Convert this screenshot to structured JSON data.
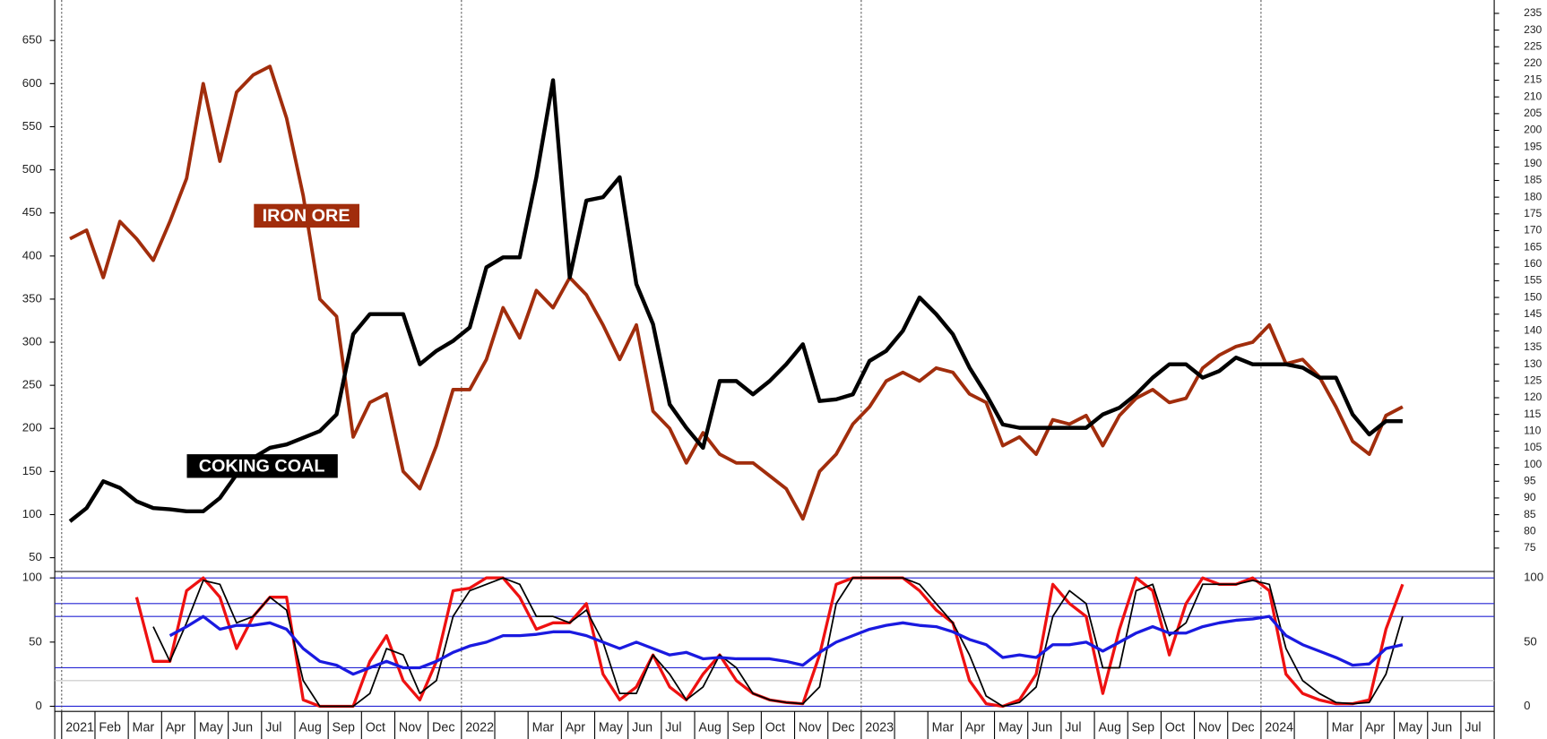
{
  "chart_data": [
    {
      "type": "line",
      "ylim": [
        34,
        697
      ],
      "yticks": [
        50,
        100,
        150,
        200,
        250,
        300,
        350,
        400,
        450,
        500,
        550,
        600,
        650
      ],
      "y2lim": [
        68,
        239
      ],
      "y2ticks": [
        75,
        80,
        85,
        90,
        95,
        100,
        105,
        110,
        115,
        120,
        125,
        130,
        135,
        140,
        145,
        150,
        155,
        160,
        165,
        170,
        175,
        180,
        185,
        190,
        195,
        200,
        205,
        210,
        215,
        220,
        225,
        230,
        235
      ],
      "series": [
        {
          "name": "IRON ORE",
          "color": "#a12d0c",
          "values": [
            420,
            430,
            375,
            440,
            420,
            395,
            440,
            490,
            600,
            510,
            590,
            610,
            620,
            560,
            470,
            350,
            330,
            190,
            230,
            240,
            150,
            130,
            180,
            245,
            245,
            280,
            340,
            305,
            360,
            340,
            375,
            355,
            320,
            280,
            320,
            220,
            200,
            160,
            195,
            170,
            160,
            160,
            145,
            130,
            95,
            150,
            170,
            205,
            225,
            255,
            265,
            255,
            270,
            265,
            240,
            230,
            180,
            190,
            170,
            210,
            205,
            215,
            180,
            215,
            235,
            245,
            230,
            235,
            270,
            285,
            295,
            300,
            320,
            275,
            280,
            260,
            225,
            185,
            170,
            215,
            225,
            null,
            null,
            null,
            null,
            null
          ]
        },
        {
          "name": "COKING COAL",
          "color": "#000000",
          "axis": "y2",
          "values": [
            83,
            87,
            95,
            93,
            89,
            87,
            86.6,
            86,
            86,
            90,
            97,
            102,
            105,
            106,
            108,
            110,
            115,
            139,
            145,
            145,
            145,
            130,
            134,
            137,
            141,
            159,
            162,
            162,
            186,
            215,
            156,
            179,
            180,
            186,
            154,
            142,
            118,
            111,
            105,
            125,
            125,
            121,
            125,
            130,
            136,
            119,
            119.5,
            121,
            131,
            134,
            140,
            150,
            145,
            139,
            129,
            121,
            112,
            111,
            111,
            111,
            111,
            111,
            115,
            117,
            121,
            126,
            130,
            130,
            126,
            128,
            132,
            130,
            130,
            130,
            129,
            126,
            126,
            115,
            109,
            113,
            113,
            null,
            null,
            null,
            null,
            null
          ]
        }
      ]
    },
    {
      "type": "line",
      "categories": [
        "2021",
        null,
        "Feb",
        null,
        "Mar",
        null,
        "Apr",
        null,
        "May",
        null,
        "Jun",
        null,
        "Jul",
        null,
        "Aug",
        null,
        "Sep",
        null,
        "Oct",
        null,
        "Nov",
        null,
        "Dec",
        null,
        "2022",
        null,
        null,
        null,
        "Mar",
        null,
        "Apr",
        null,
        "May",
        null,
        "Jun",
        null,
        "Jul",
        null,
        "Aug",
        null,
        "Sep",
        null,
        "Oct",
        null,
        "Nov",
        null,
        "Dec",
        null,
        "2023",
        null,
        null,
        null,
        "Mar",
        null,
        "Apr",
        null,
        "May",
        null,
        "Jun",
        null,
        "Jul",
        null,
        "Aug",
        null,
        "Sep",
        null,
        "Oct",
        null,
        "Nov",
        null,
        "Dec",
        null,
        "2024",
        null,
        null,
        null,
        "Mar",
        null,
        "Apr",
        null,
        "May",
        null,
        "Jun",
        null,
        "Jul",
        null
      ],
      "ylim": [
        -4,
        105
      ],
      "yticks": [
        0,
        50,
        100
      ],
      "reference_lines": [
        {
          "value": 100,
          "color": "#2424d4"
        },
        {
          "value": 80,
          "color": "#2424d4"
        },
        {
          "value": 70,
          "color": "#2424d4"
        },
        {
          "value": 30,
          "color": "#2424d4"
        },
        {
          "value": 20,
          "color": "#c8c8c8"
        },
        {
          "value": 0,
          "color": "#2424d4"
        }
      ],
      "series": [
        {
          "color": "#ee1111",
          "values": [
            null,
            null,
            null,
            null,
            85,
            35,
            35,
            90,
            100,
            85,
            45,
            70,
            85,
            85,
            5,
            0,
            0,
            0,
            35,
            55,
            20,
            5,
            35,
            90,
            92,
            100,
            100,
            85,
            60,
            65,
            65,
            80,
            25,
            5,
            15,
            40,
            15,
            5,
            25,
            40,
            20,
            10,
            5,
            3,
            2,
            40,
            95,
            100,
            100,
            100,
            100,
            90,
            75,
            65,
            20,
            2,
            0,
            5,
            25,
            95,
            80,
            70,
            10,
            60,
            100,
            90,
            40,
            80,
            100,
            95,
            95,
            100,
            90,
            25,
            10,
            5,
            2,
            2,
            5,
            60,
            95,
            null,
            null,
            null,
            null,
            null
          ]
        },
        {
          "color": "#000000",
          "values": [
            null,
            null,
            null,
            null,
            null,
            62,
            35,
            65,
            98,
            95,
            65,
            70,
            85,
            75,
            20,
            0,
            0,
            0,
            10,
            45,
            40,
            10,
            20,
            70,
            90,
            95,
            100,
            95,
            70,
            70,
            65,
            75,
            50,
            10,
            10,
            40,
            25,
            5,
            15,
            40,
            30,
            10,
            5,
            3,
            2,
            15,
            80,
            100,
            100,
            100,
            100,
            95,
            80,
            65,
            40,
            8,
            0,
            3,
            15,
            70,
            90,
            80,
            30,
            30,
            90,
            95,
            55,
            65,
            95,
            95,
            95,
            98,
            95,
            45,
            20,
            10,
            3,
            2,
            3,
            25,
            70,
            null,
            null,
            null,
            null,
            null
          ]
        },
        {
          "color": "#1a1ae0",
          "values": [
            null,
            null,
            null,
            null,
            null,
            null,
            55,
            62,
            70,
            60,
            63,
            63,
            65,
            60,
            45,
            35,
            32,
            25,
            30,
            35,
            30,
            30,
            35,
            42,
            47,
            50,
            55,
            55,
            56,
            58,
            58,
            55,
            50,
            45,
            50,
            45,
            40,
            42,
            37,
            38,
            37,
            37,
            37,
            35,
            32,
            42,
            50,
            55,
            60,
            63,
            65,
            63,
            62,
            58,
            52,
            48,
            38,
            40,
            38,
            48,
            48,
            50,
            43,
            50,
            57,
            62,
            57,
            57,
            62,
            65,
            67,
            68,
            70,
            55,
            48,
            43,
            38,
            32,
            33,
            45,
            48,
            null,
            null,
            null,
            null,
            null
          ]
        }
      ]
    }
  ]
}
